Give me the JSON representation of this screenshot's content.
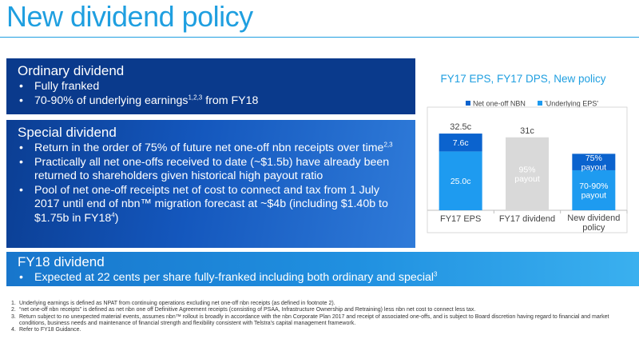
{
  "title": "New dividend policy",
  "ordinary": {
    "heading": "Ordinary dividend",
    "bullet1": "Fully franked",
    "bullet2_text": "70-90% of underlying earnings",
    "bullet2_sup": "1,2,3",
    "bullet2_tail": " from FY18"
  },
  "special": {
    "heading": "Special dividend",
    "bullet1_text": "Return in the order of 75% of future net one-off nbn receipts over time",
    "bullet1_sup": "2,3",
    "bullet2": "Practically all net one-offs received to date (~$1.5b) have already been returned to shareholders given historical high payout ratio",
    "bullet3_text": "Pool of net one-off receipts net of cost to connect and tax from 1 July 2017 until end of nbn™ migration forecast at ~$4b (including $1.40b to $1.75b in FY18",
    "bullet3_sup": "4",
    "bullet3_tail": ")"
  },
  "fy18": {
    "heading": "FY18 dividend",
    "bullet1_text": "Expected at 22 cents per share fully-franked including both ordinary and special",
    "bullet1_sup": "3"
  },
  "footnotes": [
    {
      "num": "1.",
      "text": "Underlying earnings is defined as NPAT from continuing operations excluding net one-off nbn receipts (as defined in footnote 2)."
    },
    {
      "num": "2.",
      "text": "“net one-off nbn receipts” is defined as net nbn one off Definitive Agreement receipts (consisting of PSAA, Infrastructure Ownership and Retraining) less nbn net cost to connect less tax."
    },
    {
      "num": "3.",
      "text": "Return subject to no unexpected material events, assumes nbn™ rollout is broadly in accordance with the nbn Corporate Plan 2017 and receipt of associated one-offs, and is subject to Board discretion having regard to financial and market conditions, business needs and maintenance of financial strength and flexibility consistent with Telstra’s capital management framework."
    },
    {
      "num": "4.",
      "text": "Refer to FY18 Guidance."
    }
  ],
  "chart_data": {
    "type": "bar",
    "title": "FY17 EPS, FY17 DPS, New policy",
    "categories": [
      "FY17 EPS",
      "FY17 dividend",
      "New dividend policy"
    ],
    "series": [
      {
        "name": "Net one-off NBN",
        "color": "#0b63ce"
      },
      {
        "name": "'Underlying EPS'",
        "color": "#1e9bf0"
      }
    ],
    "bars": [
      {
        "category": "FY17 EPS",
        "total": 32.5,
        "total_label": "32.5c",
        "segments": [
          {
            "series": "'Underlying EPS'",
            "value": 25.0,
            "label": "25.0c",
            "color": "#1e9bf0"
          },
          {
            "series": "Net one-off NBN",
            "value": 7.6,
            "label": "7.6c",
            "color": "#0b63ce"
          }
        ]
      },
      {
        "category": "FY17 dividend",
        "total": 31,
        "total_label": "31c",
        "segments": [
          {
            "series": "dividend",
            "value": 31,
            "label": "95%\npayout",
            "color": "#d9d9d9",
            "text_color": "#ffffff"
          }
        ]
      },
      {
        "category": "New dividend policy",
        "total": 24,
        "total_label": "",
        "segments": [
          {
            "series": "'Underlying EPS'",
            "value": 17,
            "label": "70-90%\npayout",
            "color": "#1e9bf0"
          },
          {
            "series": "Net one-off NBN",
            "value": 7,
            "label": "75%\npayout",
            "color": "#0b63ce"
          }
        ]
      }
    ],
    "ylim": [
      0,
      35
    ],
    "legend_position": "top",
    "grid": false
  }
}
